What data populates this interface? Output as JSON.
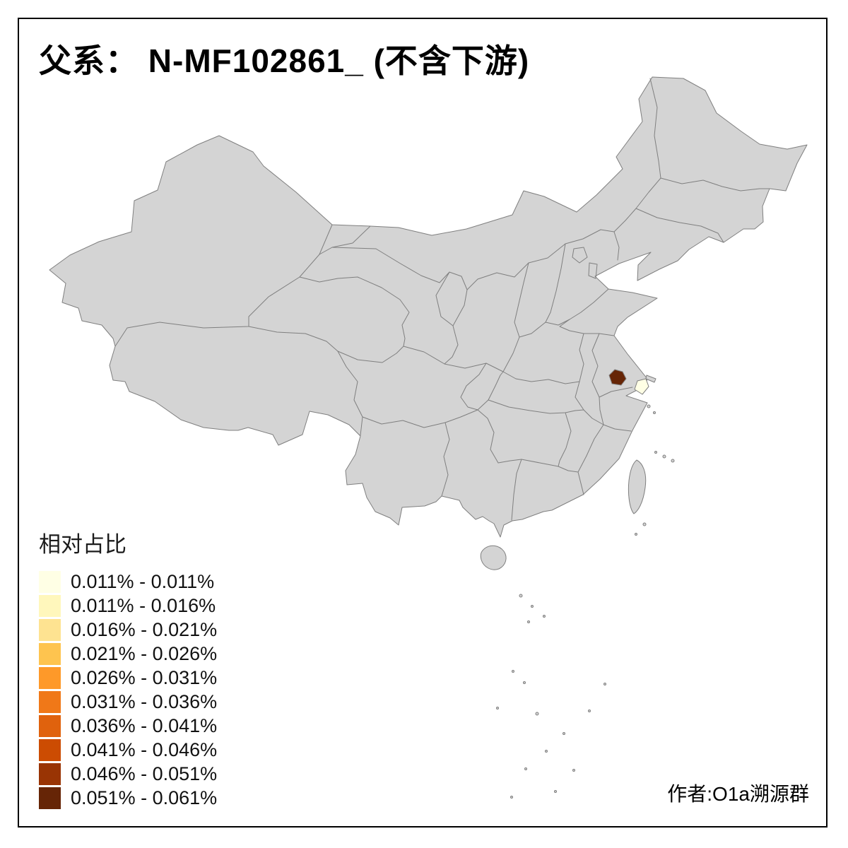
{
  "title": "父系： N-MF102861_ (不含下游)",
  "legend": {
    "title": "相对占比",
    "entries": [
      {
        "label": "0.011% - 0.011%",
        "color": "#FFFFE5"
      },
      {
        "label": "0.011% - 0.016%",
        "color": "#FFF7BC"
      },
      {
        "label": "0.016% - 0.021%",
        "color": "#FEE391"
      },
      {
        "label": "0.021% - 0.026%",
        "color": "#FEC44F"
      },
      {
        "label": "0.026% - 0.031%",
        "color": "#FE9929"
      },
      {
        "label": "0.031% - 0.036%",
        "color": "#F07818"
      },
      {
        "label": "0.036% - 0.041%",
        "color": "#E0620D"
      },
      {
        "label": "0.041% - 0.046%",
        "color": "#CC4C02"
      },
      {
        "label": "0.046% - 0.051%",
        "color": "#993404"
      },
      {
        "label": "0.051% - 0.061%",
        "color": "#662506"
      }
    ]
  },
  "attribution": "作者:O1a溯源群",
  "map": {
    "background": "#FFFFFF",
    "land_fill": "#D4D4D4",
    "border_color": "#7F7F7F",
    "frame_color": "#000000",
    "region_dark_fill": "#662506",
    "region_pale_fill": "#FFFFE5"
  },
  "chart_data": {
    "type": "choropleth",
    "title": "父系： N-MF102861_ (不含下游)",
    "legend_title": "相对占比",
    "legend_position": "bottom-left",
    "bins": [
      "0.011% - 0.011%",
      "0.011% - 0.016%",
      "0.016% - 0.021%",
      "0.021% - 0.026%",
      "0.026% - 0.031%",
      "0.031% - 0.036%",
      "0.036% - 0.041%",
      "0.041% - 0.046%",
      "0.046% - 0.051%",
      "0.051% - 0.061%"
    ],
    "colored_regions": [
      {
        "color": "#662506"
      },
      {
        "color": "#FFFFE5"
      }
    ]
  }
}
